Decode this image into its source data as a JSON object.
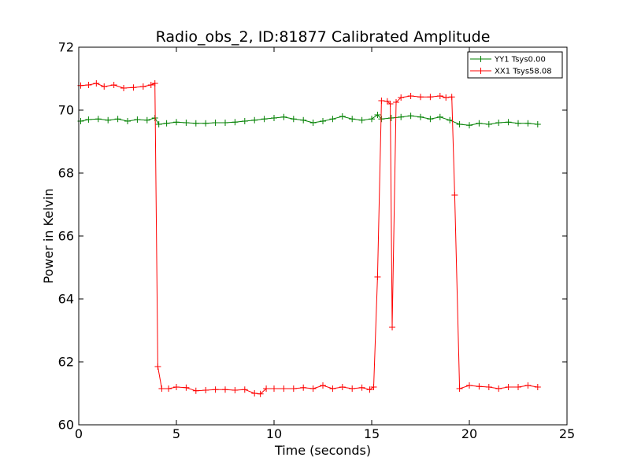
{
  "chart_data": {
    "type": "line",
    "title": "Radio_obs_2, ID:81877 Calibrated Amplitude",
    "xlabel": "Time (seconds)",
    "ylabel": "Power in Kelvin",
    "xlim": [
      0,
      25
    ],
    "ylim": [
      60,
      72
    ],
    "xticks": [
      0,
      5,
      10,
      15,
      20,
      25
    ],
    "yticks": [
      60,
      62,
      64,
      66,
      68,
      70,
      72
    ],
    "grid": false,
    "legend_position": "top-right",
    "colors": {
      "YY1": "#008000",
      "XX1": "#ff0000"
    },
    "series": [
      {
        "name": "YY1 Tsys0.00",
        "color": "#008000",
        "marker": "plus",
        "x": [
          0.1,
          0.5,
          1.0,
          1.5,
          2.0,
          2.5,
          3.0,
          3.5,
          3.9,
          4.1,
          4.5,
          5.0,
          5.5,
          6.0,
          6.5,
          7.0,
          7.5,
          8.0,
          8.5,
          9.0,
          9.5,
          10.0,
          10.5,
          11.0,
          11.5,
          12.0,
          12.5,
          13.0,
          13.5,
          14.0,
          14.5,
          15.0,
          15.3,
          15.5,
          16.0,
          16.5,
          17.0,
          17.5,
          18.0,
          18.5,
          19.0,
          19.5,
          20.0,
          20.5,
          21.0,
          21.5,
          22.0,
          22.5,
          23.0,
          23.5
        ],
        "y": [
          69.65,
          69.7,
          69.72,
          69.68,
          69.72,
          69.65,
          69.7,
          69.68,
          69.75,
          69.55,
          69.58,
          69.62,
          69.6,
          69.58,
          69.58,
          69.6,
          69.6,
          69.62,
          69.65,
          69.68,
          69.72,
          69.75,
          69.78,
          69.72,
          69.68,
          69.6,
          69.65,
          69.72,
          69.8,
          69.72,
          69.68,
          69.72,
          69.85,
          69.72,
          69.75,
          69.78,
          69.82,
          69.78,
          69.72,
          69.78,
          69.68,
          69.55,
          69.52,
          69.58,
          69.55,
          69.6,
          69.62,
          69.58,
          69.58,
          69.55
        ]
      },
      {
        "name": "XX1 Tsys58.08",
        "color": "#ff0000",
        "marker": "plus",
        "x": [
          0.1,
          0.5,
          0.9,
          1.3,
          1.8,
          2.3,
          2.8,
          3.3,
          3.7,
          3.9,
          4.05,
          4.25,
          4.6,
          5.0,
          5.5,
          6.0,
          6.5,
          7.0,
          7.5,
          8.0,
          8.5,
          9.0,
          9.3,
          9.6,
          10.0,
          10.5,
          11.0,
          11.5,
          12.0,
          12.5,
          13.0,
          13.5,
          14.0,
          14.5,
          14.9,
          15.1,
          15.3,
          15.5,
          15.8,
          15.95,
          16.05,
          16.25,
          16.5,
          17.0,
          17.5,
          18.0,
          18.5,
          18.8,
          19.1,
          19.25,
          19.5,
          20.0,
          20.5,
          21.0,
          21.5,
          22.0,
          22.5,
          23.0,
          23.5
        ],
        "y": [
          70.78,
          70.8,
          70.85,
          70.75,
          70.8,
          70.7,
          70.72,
          70.75,
          70.8,
          70.85,
          61.85,
          61.15,
          61.15,
          61.2,
          61.18,
          61.08,
          61.1,
          61.12,
          61.12,
          61.1,
          61.12,
          61.0,
          60.98,
          61.15,
          61.15,
          61.15,
          61.15,
          61.18,
          61.15,
          61.25,
          61.15,
          61.2,
          61.15,
          61.18,
          61.12,
          61.2,
          64.7,
          70.3,
          70.28,
          70.2,
          63.1,
          70.25,
          70.4,
          70.45,
          70.42,
          70.42,
          70.45,
          70.4,
          70.42,
          67.3,
          61.15,
          61.25,
          61.22,
          61.2,
          61.15,
          61.2,
          61.2,
          61.25,
          61.2
        ]
      }
    ]
  }
}
